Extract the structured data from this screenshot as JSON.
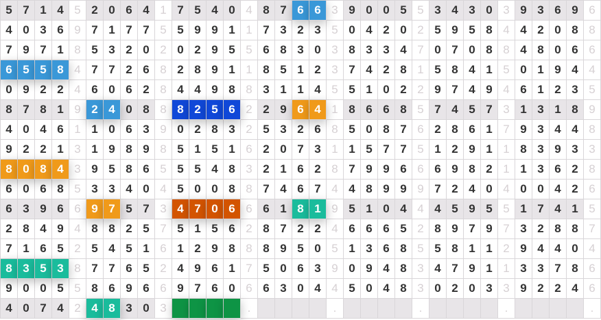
{
  "colors": {
    "light_blue": "#3a98d8",
    "dark_blue": "#1048d8",
    "orange": "#f09a1a",
    "dark_orange": "#d35400",
    "teal": "#1abc9c",
    "green": "#0e9445",
    "shaded_row": "#e8e5e8"
  },
  "rows": [
    {
      "shaded": true,
      "cells": [
        "5",
        "7",
        "1",
        "4",
        "5",
        "2",
        "0",
        "6",
        "4",
        "1",
        "7",
        "5",
        "4",
        "0",
        "4",
        "8",
        "7",
        "6",
        "6",
        "3",
        "9",
        "0",
        "0",
        "5",
        "5",
        "3",
        "4",
        "3",
        "0",
        "3",
        "9",
        "3",
        "6",
        "9",
        "6"
      ],
      "highlights": [
        {
          "start": 17,
          "len": 2,
          "color": "light_blue"
        }
      ]
    },
    {
      "shaded": false,
      "cells": [
        "4",
        "0",
        "3",
        "6",
        "9",
        "7",
        "1",
        "7",
        "7",
        "5",
        "5",
        "9",
        "9",
        "1",
        "1",
        "7",
        "3",
        "2",
        "3",
        "5",
        "0",
        "4",
        "2",
        "0",
        "2",
        "5",
        "9",
        "5",
        "8",
        "4",
        "4",
        "2",
        "0",
        "8",
        "8"
      ],
      "highlights": []
    },
    {
      "shaded": false,
      "cells": [
        "7",
        "9",
        "7",
        "1",
        "8",
        "5",
        "3",
        "2",
        "0",
        "2",
        "0",
        "2",
        "9",
        "5",
        "5",
        "6",
        "8",
        "3",
        "0",
        "3",
        "8",
        "3",
        "3",
        "4",
        "7",
        "0",
        "7",
        "0",
        "8",
        "8",
        "4",
        "8",
        "0",
        "6",
        "6"
      ],
      "highlights": []
    },
    {
      "shaded": false,
      "cells": [
        "6",
        "5",
        "5",
        "8",
        "4",
        "7",
        "7",
        "2",
        "6",
        "8",
        "2",
        "8",
        "9",
        "1",
        "1",
        "8",
        "5",
        "1",
        "2",
        "3",
        "7",
        "4",
        "2",
        "8",
        "1",
        "5",
        "8",
        "4",
        "1",
        "5",
        "0",
        "1",
        "9",
        "4",
        "4"
      ],
      "highlights": [
        {
          "start": 0,
          "len": 4,
          "color": "light_blue"
        }
      ]
    },
    {
      "shaded": false,
      "cells": [
        "0",
        "9",
        "2",
        "2",
        "4",
        "6",
        "0",
        "6",
        "2",
        "8",
        "4",
        "4",
        "9",
        "8",
        "8",
        "3",
        "1",
        "1",
        "4",
        "5",
        "5",
        "1",
        "0",
        "2",
        "2",
        "9",
        "7",
        "4",
        "9",
        "4",
        "6",
        "1",
        "2",
        "3",
        "5"
      ],
      "highlights": []
    },
    {
      "shaded": true,
      "cells": [
        "8",
        "7",
        "8",
        "1",
        "9",
        "2",
        "4",
        "0",
        "8",
        "8",
        "8",
        "2",
        "5",
        "6",
        "2",
        "2",
        "9",
        "6",
        "4",
        "1",
        "8",
        "6",
        "6",
        "8",
        "5",
        "7",
        "4",
        "5",
        "7",
        "3",
        "1",
        "3",
        "1",
        "8",
        "9"
      ],
      "highlights": [
        {
          "start": 5,
          "len": 2,
          "color": "light_blue"
        },
        {
          "start": 10,
          "len": 4,
          "color": "dark_blue"
        },
        {
          "start": 17,
          "len": 2,
          "color": "orange"
        }
      ]
    },
    {
      "shaded": false,
      "cells": [
        "4",
        "0",
        "4",
        "6",
        "1",
        "1",
        "0",
        "6",
        "3",
        "9",
        "0",
        "2",
        "8",
        "3",
        "2",
        "5",
        "3",
        "2",
        "6",
        "8",
        "5",
        "0",
        "8",
        "7",
        "6",
        "2",
        "8",
        "6",
        "1",
        "7",
        "9",
        "3",
        "4",
        "4",
        "8"
      ],
      "highlights": []
    },
    {
      "shaded": false,
      "cells": [
        "9",
        "2",
        "2",
        "1",
        "3",
        "1",
        "9",
        "8",
        "9",
        "8",
        "5",
        "1",
        "5",
        "1",
        "6",
        "2",
        "0",
        "7",
        "3",
        "1",
        "1",
        "5",
        "7",
        "7",
        "5",
        "1",
        "2",
        "9",
        "1",
        "1",
        "8",
        "3",
        "9",
        "3",
        "3"
      ],
      "highlights": []
    },
    {
      "shaded": false,
      "cells": [
        "8",
        "0",
        "8",
        "4",
        "3",
        "9",
        "5",
        "8",
        "6",
        "5",
        "5",
        "5",
        "4",
        "8",
        "3",
        "2",
        "1",
        "6",
        "2",
        "8",
        "7",
        "9",
        "9",
        "6",
        "6",
        "6",
        "9",
        "8",
        "2",
        "1",
        "1",
        "3",
        "6",
        "2",
        "8"
      ],
      "highlights": [
        {
          "start": 0,
          "len": 4,
          "color": "orange"
        }
      ]
    },
    {
      "shaded": false,
      "cells": [
        "6",
        "0",
        "6",
        "8",
        "5",
        "3",
        "3",
        "4",
        "0",
        "4",
        "5",
        "0",
        "0",
        "8",
        "8",
        "7",
        "4",
        "6",
        "7",
        "4",
        "4",
        "8",
        "9",
        "9",
        "9",
        "7",
        "2",
        "4",
        "0",
        "4",
        "0",
        "0",
        "4",
        "2",
        "6"
      ],
      "highlights": []
    },
    {
      "shaded": true,
      "cells": [
        "6",
        "3",
        "9",
        "6",
        "6",
        "9",
        "7",
        "5",
        "7",
        "3",
        "4",
        "7",
        "0",
        "6",
        "6",
        "6",
        "1",
        "8",
        "1",
        "9",
        "5",
        "1",
        "0",
        "4",
        "4",
        "4",
        "5",
        "9",
        "5",
        "5",
        "1",
        "7",
        "4",
        "1",
        "5"
      ],
      "highlights": [
        {
          "start": 5,
          "len": 2,
          "color": "orange"
        },
        {
          "start": 10,
          "len": 4,
          "color": "dark_orange"
        },
        {
          "start": 17,
          "len": 2,
          "color": "teal"
        }
      ]
    },
    {
      "shaded": false,
      "cells": [
        "2",
        "8",
        "4",
        "9",
        "4",
        "8",
        "8",
        "2",
        "5",
        "7",
        "5",
        "1",
        "5",
        "6",
        "2",
        "8",
        "7",
        "2",
        "2",
        "4",
        "6",
        "6",
        "6",
        "5",
        "2",
        "8",
        "9",
        "7",
        "9",
        "7",
        "3",
        "2",
        "8",
        "8",
        "7"
      ],
      "highlights": []
    },
    {
      "shaded": false,
      "cells": [
        "7",
        "1",
        "6",
        "5",
        "2",
        "5",
        "4",
        "5",
        "1",
        "6",
        "1",
        "2",
        "9",
        "8",
        "8",
        "8",
        "9",
        "5",
        "0",
        "5",
        "1",
        "3",
        "6",
        "8",
        "5",
        "5",
        "8",
        "1",
        "1",
        "2",
        "9",
        "4",
        "4",
        "0",
        "4"
      ],
      "highlights": []
    },
    {
      "shaded": false,
      "cells": [
        "8",
        "3",
        "5",
        "3",
        "8",
        "7",
        "7",
        "6",
        "5",
        "2",
        "4",
        "9",
        "6",
        "1",
        "7",
        "5",
        "0",
        "6",
        "3",
        "9",
        "0",
        "9",
        "4",
        "8",
        "3",
        "4",
        "7",
        "9",
        "1",
        "1",
        "3",
        "3",
        "7",
        "8",
        "6"
      ],
      "highlights": [
        {
          "start": 0,
          "len": 4,
          "color": "teal"
        }
      ]
    },
    {
      "shaded": false,
      "cells": [
        "9",
        "0",
        "0",
        "5",
        "5",
        "8",
        "6",
        "9",
        "6",
        "6",
        "9",
        "7",
        "6",
        "0",
        "6",
        "6",
        "3",
        "0",
        "4",
        "4",
        "5",
        "0",
        "4",
        "8",
        "3",
        "0",
        "2",
        "0",
        "3",
        "3",
        "9",
        "2",
        "2",
        "4",
        "6"
      ],
      "highlights": []
    },
    {
      "shaded": true,
      "cells": [
        "4",
        "0",
        "7",
        "4",
        "2",
        "4",
        "8",
        "3",
        "0",
        "3",
        "",
        "",
        "",
        "",
        ".",
        "",
        "",
        "",
        "",
        ".",
        "",
        "",
        "",
        "",
        ".",
        "",
        "",
        "",
        "",
        ".",
        "",
        "",
        "",
        "",
        "."
      ],
      "highlights": [
        {
          "start": 5,
          "len": 2,
          "color": "teal"
        },
        {
          "start": 10,
          "len": 4,
          "color": "green"
        }
      ]
    }
  ]
}
